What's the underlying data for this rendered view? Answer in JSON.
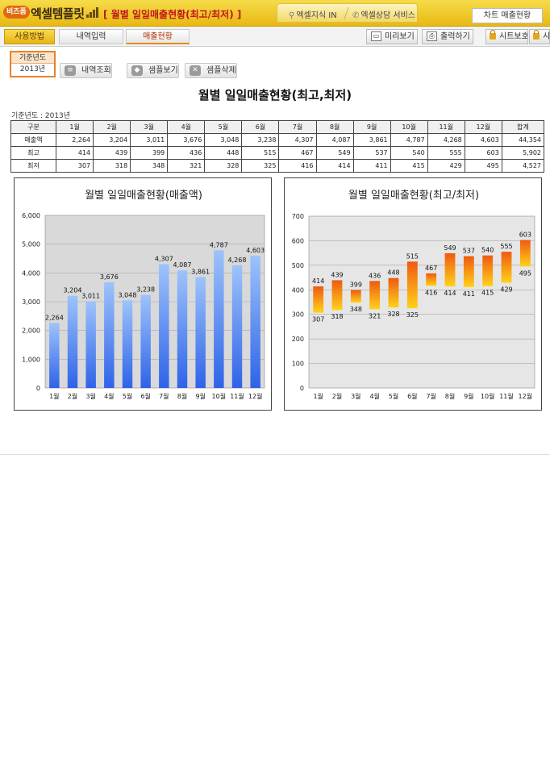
{
  "header": {
    "logo_badge": "비즈폼",
    "logo_text": "엑셀템플릿",
    "title": "[ 월별 일일매출현황(최고/최저) ]",
    "links": [
      {
        "label": "엑셀지식 IN",
        "icon": "pin-icon"
      },
      {
        "label": "엑셀상담 서비스",
        "icon": "phone-icon"
      }
    ],
    "chart_tab": "차트 매출현황"
  },
  "toolbar": {
    "tabs": [
      "사용방법",
      "내역입력",
      "매출현황"
    ],
    "active_tab": "매출현황",
    "preview": "미리보기",
    "print": "출력하기",
    "sheet_protect": "시트보호",
    "sheet_protect_2": "시트"
  },
  "controls": {
    "year_label": "기준년도",
    "year_value": "2013년",
    "buttons": [
      "내역조회",
      "샘플보기",
      "샘플삭제"
    ]
  },
  "report": {
    "title": "월별 일일매출현황(최고,최저)",
    "base_year": "기준년도 : 2013년",
    "columns": [
      "구분",
      "1월",
      "2월",
      "3월",
      "4월",
      "5월",
      "6월",
      "7월",
      "8월",
      "9월",
      "10월",
      "11월",
      "12월",
      "합계"
    ],
    "rows": [
      {
        "label": "매출액",
        "values": [
          "2,264",
          "3,204",
          "3,011",
          "3,676",
          "3,048",
          "3,238",
          "4,307",
          "4,087",
          "3,861",
          "4,787",
          "4,268",
          "4,603",
          "44,354"
        ]
      },
      {
        "label": "최고",
        "values": [
          "414",
          "439",
          "399",
          "436",
          "448",
          "515",
          "467",
          "549",
          "537",
          "540",
          "555",
          "603",
          "5,902"
        ]
      },
      {
        "label": "최저",
        "values": [
          "307",
          "318",
          "348",
          "321",
          "328",
          "325",
          "416",
          "414",
          "411",
          "415",
          "429",
          "495",
          "4,527"
        ]
      }
    ]
  },
  "chart_data": [
    {
      "type": "bar",
      "title": "월별 일일매출현황(매출액)",
      "categories": [
        "1월",
        "2월",
        "3월",
        "4월",
        "5월",
        "6월",
        "7월",
        "8월",
        "9월",
        "10월",
        "11월",
        "12월"
      ],
      "values": [
        2264,
        3204,
        3011,
        3676,
        3048,
        3238,
        4307,
        4087,
        3861,
        4787,
        4268,
        4603
      ],
      "value_labels": [
        "2,264",
        "3,204",
        "3,011",
        "3,676",
        "3,048",
        "3,238",
        "4,307",
        "4,087",
        "3,861",
        "4,787",
        "4,268",
        "4,603"
      ],
      "ylim": [
        0,
        6000
      ],
      "yticks": [
        0,
        1000,
        2000,
        3000,
        4000,
        5000,
        6000
      ],
      "ytick_labels": [
        "0",
        "1,000",
        "2,000",
        "3,000",
        "4,000",
        "5,000",
        "6,000"
      ],
      "grid": true,
      "bar_color_top": "#9ec3fb",
      "bar_color_bottom": "#2e63e8",
      "plot_bg": "#d9d9d9"
    },
    {
      "type": "bar",
      "title": "월별 일일매출현황(최고/최저)",
      "categories": [
        "1월",
        "2월",
        "3월",
        "4월",
        "5월",
        "6월",
        "7월",
        "8월",
        "9월",
        "10월",
        "11월",
        "12월"
      ],
      "high": [
        414,
        439,
        399,
        436,
        448,
        515,
        467,
        549,
        537,
        540,
        555,
        603
      ],
      "low": [
        307,
        318,
        348,
        321,
        328,
        325,
        416,
        414,
        411,
        415,
        429,
        495
      ],
      "ylim": [
        0,
        700
      ],
      "yticks": [
        0,
        100,
        200,
        300,
        400,
        500,
        600,
        700
      ],
      "grid": true,
      "bar_color_top": "#ef5a10",
      "bar_color_bottom": "#ffd21a",
      "plot_bg": "#e6e6e6"
    }
  ]
}
